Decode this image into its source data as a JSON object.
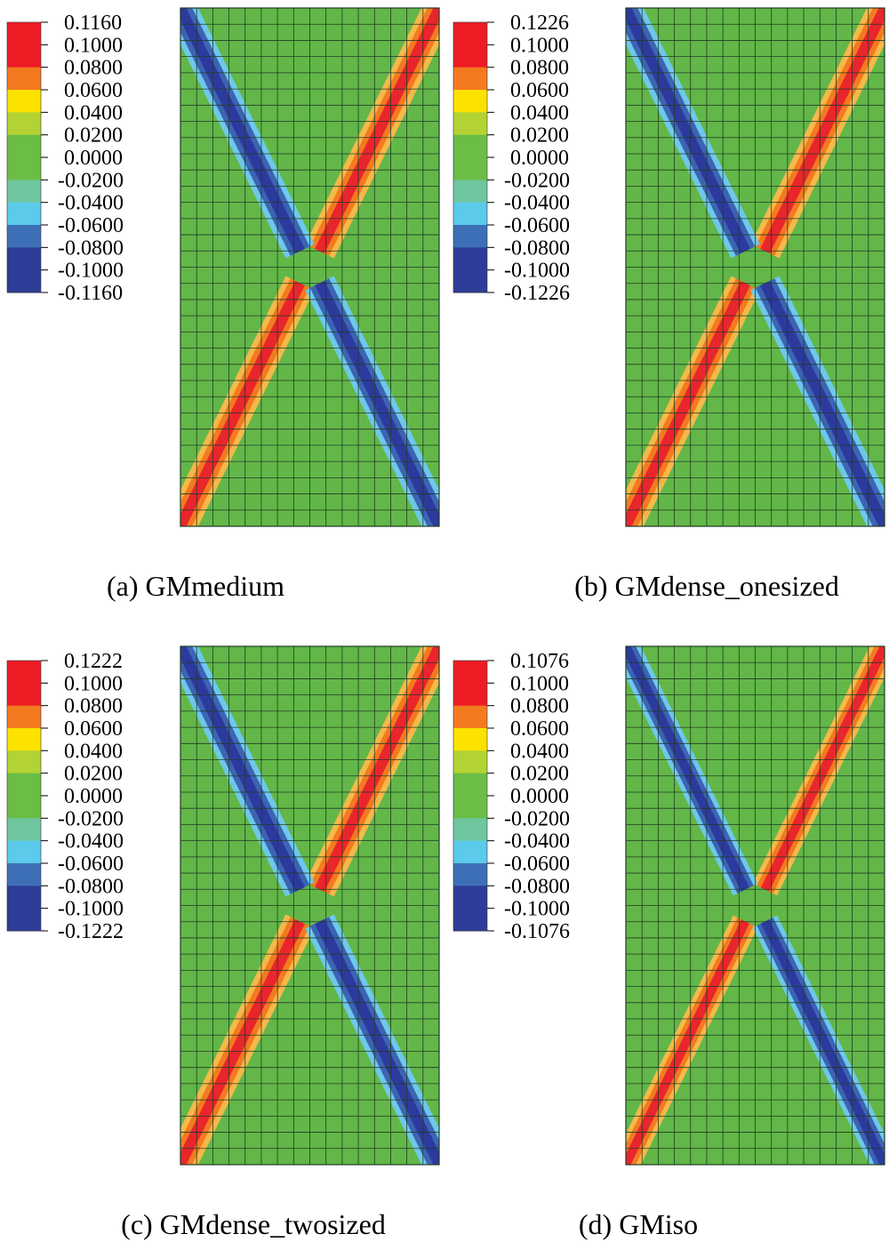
{
  "chart_data": [
    {
      "type": "heatmap",
      "caption": "(a) GMmedium",
      "legend_labels": [
        "0.1160",
        "0.1000",
        "0.0800",
        "0.0600",
        "0.0400",
        "0.0200",
        "0.0000",
        "-0.0200",
        "-0.0400",
        "-0.0600",
        "-0.0800",
        "-0.1000",
        "-0.1160"
      ],
      "legend_placement": "left",
      "mesh": {
        "columns": 16,
        "rows": 32
      },
      "pattern": "X-shaped shear bands: rising diagonal positive (red), falling diagonal negative (blue)",
      "band_scale": 1.0
    },
    {
      "type": "heatmap",
      "caption": "(b) GMdense_onesized",
      "legend_labels": [
        "0.1226",
        "0.1000",
        "0.0800",
        "0.0600",
        "0.0400",
        "0.0200",
        "0.0000",
        "-0.0200",
        "-0.0400",
        "-0.0600",
        "-0.0800",
        "-0.1000",
        "-0.1226"
      ],
      "legend_placement": "left",
      "mesh": {
        "columns": 16,
        "rows": 32
      },
      "pattern": "X-shaped shear bands: rising diagonal positive (red), falling diagonal negative (blue)",
      "band_scale": 1.0
    },
    {
      "type": "heatmap",
      "caption": "(c) GMdense_twosized",
      "legend_labels": [
        "0.1222",
        "0.1000",
        "0.0800",
        "0.0600",
        "0.0400",
        "0.0200",
        "0.0000",
        "-0.0200",
        "-0.0400",
        "-0.0600",
        "-0.0800",
        "-0.1000",
        "-0.1222"
      ],
      "legend_placement": "left",
      "mesh": {
        "columns": 16,
        "rows": 32
      },
      "pattern": "X-shaped shear bands: rising diagonal positive (red), falling diagonal negative (blue)",
      "band_scale": 1.0
    },
    {
      "type": "heatmap",
      "caption": "(d) GMiso",
      "legend_labels": [
        "0.1076",
        "0.1000",
        "0.0800",
        "0.0600",
        "0.0400",
        "0.0200",
        "0.0000",
        "-0.0200",
        "-0.0400",
        "-0.0600",
        "-0.0800",
        "-0.1000",
        "-0.1076"
      ],
      "legend_placement": "left",
      "mesh": {
        "columns": 16,
        "rows": 32
      },
      "pattern": "X-shaped shear bands: rising diagonal positive (orange-red), falling diagonal negative (blue)",
      "band_scale": 0.85
    }
  ],
  "colors": {
    "legend_swatches": [
      "#ee1c25",
      "#ee1c25",
      "#f47a20",
      "#fde200",
      "#b3d334",
      "#6abd45",
      "#6abd45",
      "#6fc69f",
      "#5ccaeb",
      "#3d6fb6",
      "#2e3d97",
      "#2e3d97"
    ],
    "field_background": "#62b748",
    "grid_line": "#203b24",
    "band_positive_outer": "#f5b94a",
    "band_positive_mid": "#f47a20",
    "band_positive_core": "#e8262c",
    "band_negative_outer": "#6ec8ea",
    "band_negative_mid": "#3c64b3",
    "band_negative_core": "#2c3a9e"
  }
}
